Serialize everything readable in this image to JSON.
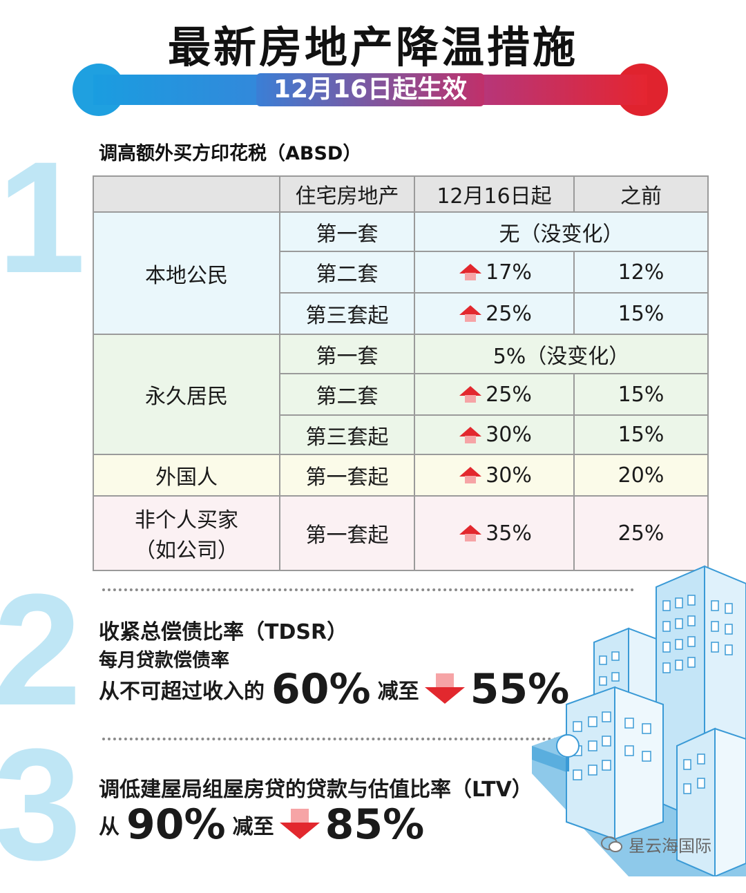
{
  "header": {
    "title": "最新房地产降温措施",
    "subtitle": "12月16日起生效"
  },
  "section1": {
    "number": "1",
    "title": "调高额外买方印花税（ABSD）",
    "table": {
      "headers": [
        "",
        "住宅房地产",
        "12月16日起",
        "之前"
      ],
      "groups": [
        {
          "label": "本地公民",
          "rows": [
            {
              "item": "第一套",
              "merged": "无（没变化）"
            },
            {
              "item": "第二套",
              "new": "17%",
              "old": "12%",
              "increase": true
            },
            {
              "item": "第三套起",
              "new": "25%",
              "old": "15%",
              "increase": true
            }
          ]
        },
        {
          "label": "永久居民",
          "rows": [
            {
              "item": "第一套",
              "merged": "5%（没变化）"
            },
            {
              "item": "第二套",
              "new": "25%",
              "old": "15%",
              "increase": true
            },
            {
              "item": "第三套起",
              "new": "30%",
              "old": "15%",
              "increase": true
            }
          ]
        },
        {
          "label": "外国人",
          "rows": [
            {
              "item": "第一套起",
              "new": "30%",
              "old": "20%",
              "increase": true
            }
          ]
        },
        {
          "label_line1": "非个人买家",
          "label_line2": "（如公司）",
          "rows": [
            {
              "item": "第一套起",
              "new": "35%",
              "old": "25%",
              "increase": true
            }
          ]
        }
      ]
    }
  },
  "section2": {
    "number": "2",
    "title": "收紧总偿债比率（TDSR）",
    "line2": "每月贷款偿债率",
    "prefix": "从不可超过收入的",
    "from_value": "60%",
    "connector": "减至",
    "to_value": "55%"
  },
  "section3": {
    "number": "3",
    "title": "调低建屋局组屋房贷的贷款与估值比率（LTV）",
    "prefix": "从",
    "from_value": "90%",
    "connector": "减至",
    "to_value": "85%"
  },
  "watermark": {
    "text": "星云海国际",
    "icon": "wechat-icon"
  },
  "colors": {
    "ribbon_left": "#1fa0e0",
    "ribbon_right": "#e0232e",
    "big_number": "#bfe6f5",
    "increase_arrow": "#e2282e",
    "citizen_bg": "#eaf7fb",
    "pr_bg": "#ecf6e9",
    "foreigner_bg": "#fbfbe9",
    "entity_bg": "#fbf1f3"
  }
}
